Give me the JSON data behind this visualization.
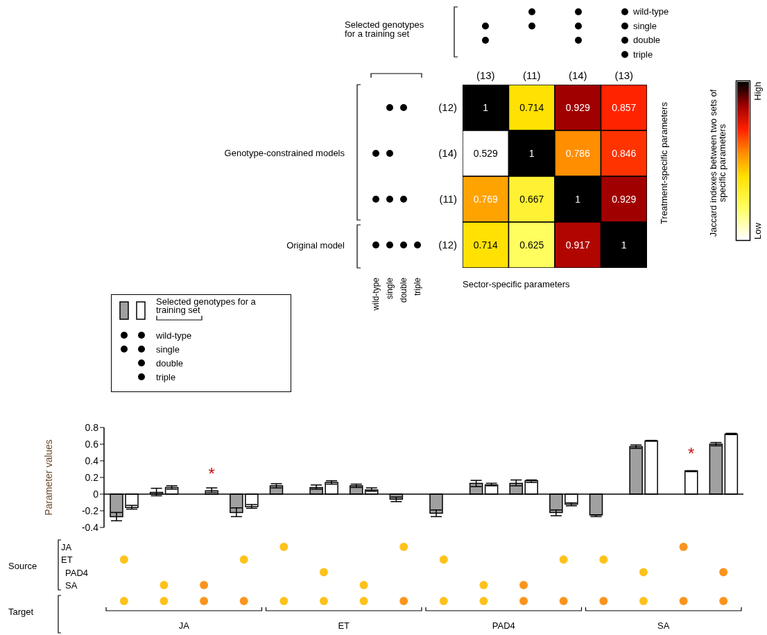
{
  "chart_data": [
    {
      "type": "heatmap",
      "categories": [
        "(13)",
        "(11)",
        "(14)",
        "(13)"
      ],
      "y_categories": [
        "(12)",
        "(14)",
        "(11)",
        "(12)"
      ],
      "cells": [
        [
          1,
          0.714,
          0.929,
          0.857
        ],
        [
          0.529,
          1,
          0.786,
          0.846
        ],
        [
          0.769,
          0.667,
          1,
          0.929
        ],
        [
          0.714,
          0.625,
          0.917,
          1
        ]
      ],
      "data_labels": true,
      "xlabel": "Sector-specific parameters",
      "ylabel": "Treatment-specific parameters",
      "clabel": "Jaccard indexes between two sets of specific parameters",
      "annotations": [
        "Selected genotypes for a training set",
        "wild-type",
        "single",
        "double",
        "triple",
        "Genotype-constrained models",
        "Original model",
        "wild-type",
        "single",
        "double",
        "triple",
        "High",
        "Low"
      ]
    },
    {
      "type": "bar",
      "categories": [
        null,
        null,
        null,
        null,
        null,
        null,
        null,
        null,
        null,
        null,
        null,
        null,
        null,
        null,
        null,
        null
      ],
      "series": [
        {
          "color": "#a0a0a0",
          "values": [
            -0.27,
            0.02,
            null,
            -0.22,
            0.1,
            0.08,
            0.1,
            -0.06,
            -0.23,
            0.13,
            0.13,
            -0.22,
            -0.25,
            0.57,
            null,
            0.6
          ],
          "errors": [
            [
              -0.32,
              -0.22
            ],
            [
              -0.02,
              0.07
            ],
            null,
            [
              -0.27,
              -0.165
            ],
            [
              0.075,
              0.125
            ],
            [
              0.06,
              0.11
            ],
            [
              0.08,
              0.12
            ],
            [
              -0.09,
              -0.035
            ],
            [
              -0.27,
              -0.19
            ],
            [
              0.09,
              0.165
            ],
            [
              0.1,
              0.17
            ],
            [
              -0.26,
              -0.19
            ],
            [
              -0.27,
              -0.25
            ],
            [
              0.55,
              0.59
            ],
            null,
            [
              0.58,
              0.62
            ]
          ]
        },
        {
          "color": "#ffffff",
          "values": [
            -0.16,
            0.08,
            0.04,
            -0.15,
            null,
            0.14,
            0.05,
            null,
            null,
            0.11,
            0.16,
            -0.12,
            null,
            0.64,
            0.28,
            0.72
          ],
          "errors": [
            [
              -0.18,
              -0.135
            ],
            [
              0.06,
              0.1
            ],
            [
              0.02,
              0.075
            ],
            [
              -0.17,
              -0.125
            ],
            null,
            [
              0.12,
              0.16
            ],
            [
              0.035,
              0.075
            ],
            null,
            null,
            [
              0.1,
              0.13
            ],
            [
              0.14,
              0.17
            ],
            [
              -0.14,
              -0.105
            ],
            null,
            [
              0.635,
              0.645
            ],
            [
              0.27,
              0.28
            ],
            [
              0.715,
              0.73
            ]
          ],
          "value_labels": [
            null,
            null,
            "*",
            null,
            null,
            null,
            null,
            null,
            null,
            null,
            null,
            null,
            null,
            null,
            "*",
            null
          ]
        }
      ],
      "ylim": [
        -0.4,
        0.8
      ],
      "yticks": [
        -0.4,
        -0.2,
        0,
        0.2,
        0.4,
        0.6,
        0.8
      ],
      "ylabel": "Parameter values",
      "legend_title": "Selected genotypes for a training set",
      "annotations": [
        "Source",
        "Target",
        "JA",
        "ET",
        "PAD4",
        "SA",
        "JA",
        "ET",
        "PAD4",
        "SA",
        "wild-type",
        "single",
        "double",
        "triple"
      ]
    }
  ]
}
